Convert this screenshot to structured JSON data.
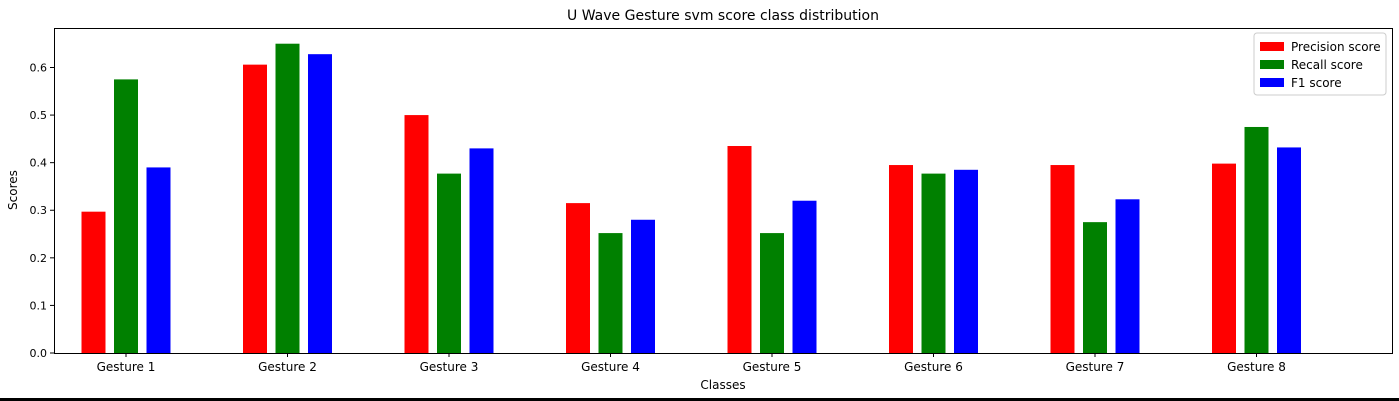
{
  "chart_data": {
    "type": "bar",
    "title": "U Wave Gesture svm score class distribution",
    "xlabel": "Classes",
    "ylabel": "Scores",
    "ylim": [
      0,
      0.683
    ],
    "yticks": [
      "0.0",
      "0.1",
      "0.2",
      "0.3",
      "0.4",
      "0.5",
      "0.6"
    ],
    "grid": false,
    "legend_position": "top-right",
    "categories": [
      "Gesture 1",
      "Gesture 2",
      "Gesture 3",
      "Gesture 4",
      "Gesture 5",
      "Gesture 6",
      "Gesture 7",
      "Gesture 8"
    ],
    "series": [
      {
        "name": "Precision score",
        "color": "#ff0000",
        "values": [
          0.297,
          0.606,
          0.5,
          0.315,
          0.435,
          0.395,
          0.395,
          0.398
        ]
      },
      {
        "name": "Recall score",
        "color": "#008000",
        "values": [
          0.575,
          0.65,
          0.377,
          0.252,
          0.252,
          0.377,
          0.275,
          0.475
        ]
      },
      {
        "name": "F1 score",
        "color": "#0000ff",
        "values": [
          0.39,
          0.628,
          0.43,
          0.28,
          0.32,
          0.385,
          0.323,
          0.432
        ]
      }
    ]
  }
}
